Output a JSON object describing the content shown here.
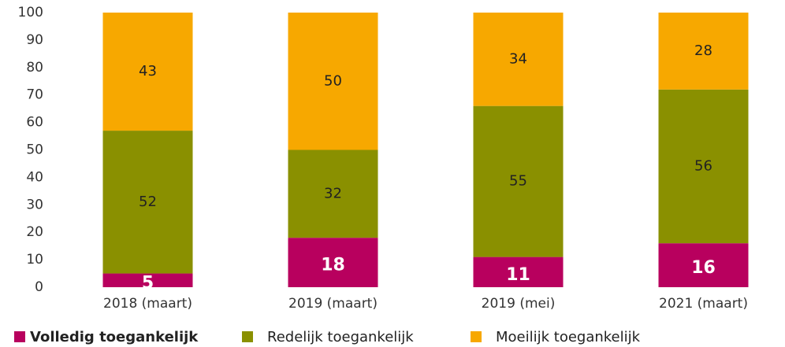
{
  "chart_data": {
    "type": "stacked-bar",
    "categories": [
      "2018 (maart)",
      "2019 (maart)",
      "2019 (mei)",
      "2021 (maart)"
    ],
    "series": [
      {
        "name": "Volledig toegankelijk",
        "color": "#b8005e",
        "values": [
          5,
          18,
          11,
          16
        ]
      },
      {
        "name": "Redelijk toegankelijk",
        "color": "#8a9000",
        "values": [
          52,
          32,
          55,
          56
        ]
      },
      {
        "name": "Moeilijk toegankelijk",
        "color": "#f7a800",
        "values": [
          43,
          50,
          34,
          28
        ]
      }
    ],
    "ylim": [
      0,
      100
    ],
    "yticks": [
      0,
      10,
      20,
      30,
      40,
      50,
      60,
      70,
      80,
      90,
      100
    ],
    "legend": "bottom",
    "grid": false
  }
}
